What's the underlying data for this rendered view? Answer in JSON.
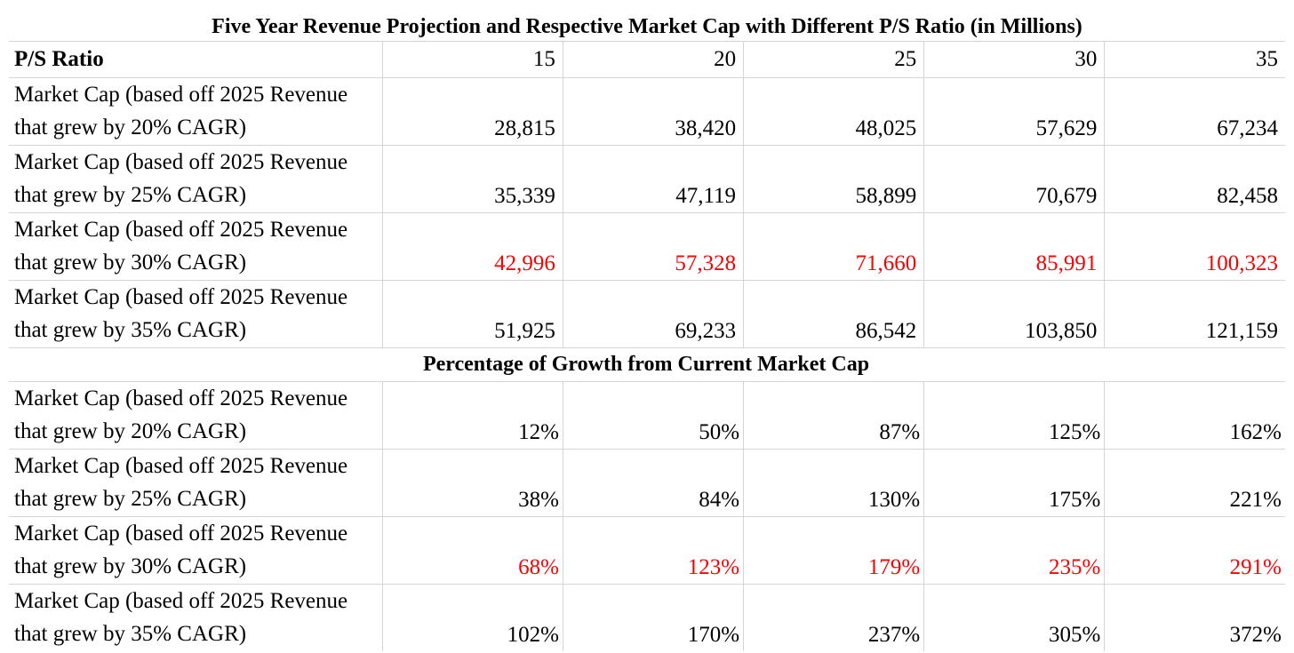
{
  "title": "Five Year Revenue Projection and Respective Market Cap with Different P/S Ratio (in Millions)",
  "header": {
    "label": "P/S Ratio",
    "ratios": [
      "15",
      "20",
      "25",
      "30",
      "35"
    ]
  },
  "market_cap_rows": [
    {
      "line1": "Market Cap (based off 2025 Revenue",
      "line2": "that grew by 20% CAGR)",
      "values": [
        "28,815",
        "38,420",
        "48,025",
        "57,629",
        "67,234"
      ],
      "highlight": false
    },
    {
      "line1": "Market Cap (based off 2025 Revenue",
      "line2": "that grew by 25% CAGR)",
      "values": [
        "35,339",
        "47,119",
        "58,899",
        "70,679",
        "82,458"
      ],
      "highlight": false
    },
    {
      "line1": "Market Cap (based off 2025 Revenue",
      "line2": "that grew by 30% CAGR)",
      "values": [
        "42,996",
        "57,328",
        "71,660",
        "85,991",
        "100,323"
      ],
      "highlight": true
    },
    {
      "line1": "Market Cap (based off 2025 Revenue",
      "line2": "that grew by 35% CAGR)",
      "values": [
        "51,925",
        "69,233",
        "86,542",
        "103,850",
        "121,159"
      ],
      "highlight": false
    }
  ],
  "growth_section_title": "Percentage of Growth from Current Market Cap",
  "growth_rows": [
    {
      "line1": "Market Cap (based off 2025 Revenue",
      "line2": "that grew by 20% CAGR)",
      "values": [
        "12%",
        "50%",
        "87%",
        "125%",
        "162%"
      ],
      "highlight": false
    },
    {
      "line1": "Market Cap (based off 2025 Revenue",
      "line2": "that grew by 25% CAGR)",
      "values": [
        "38%",
        "84%",
        "130%",
        "175%",
        "221%"
      ],
      "highlight": false
    },
    {
      "line1": "Market Cap (based off 2025 Revenue",
      "line2": "that grew by 30% CAGR)",
      "values": [
        "68%",
        "123%",
        "179%",
        "235%",
        "291%"
      ],
      "highlight": true
    },
    {
      "line1": "Market Cap (based off 2025 Revenue",
      "line2": "that grew by 35% CAGR)",
      "values": [
        "102%",
        "170%",
        "237%",
        "305%",
        "372%"
      ],
      "highlight": false
    }
  ],
  "colors": {
    "highlight": "#ff0000",
    "gridline": "#d4d4d4"
  }
}
